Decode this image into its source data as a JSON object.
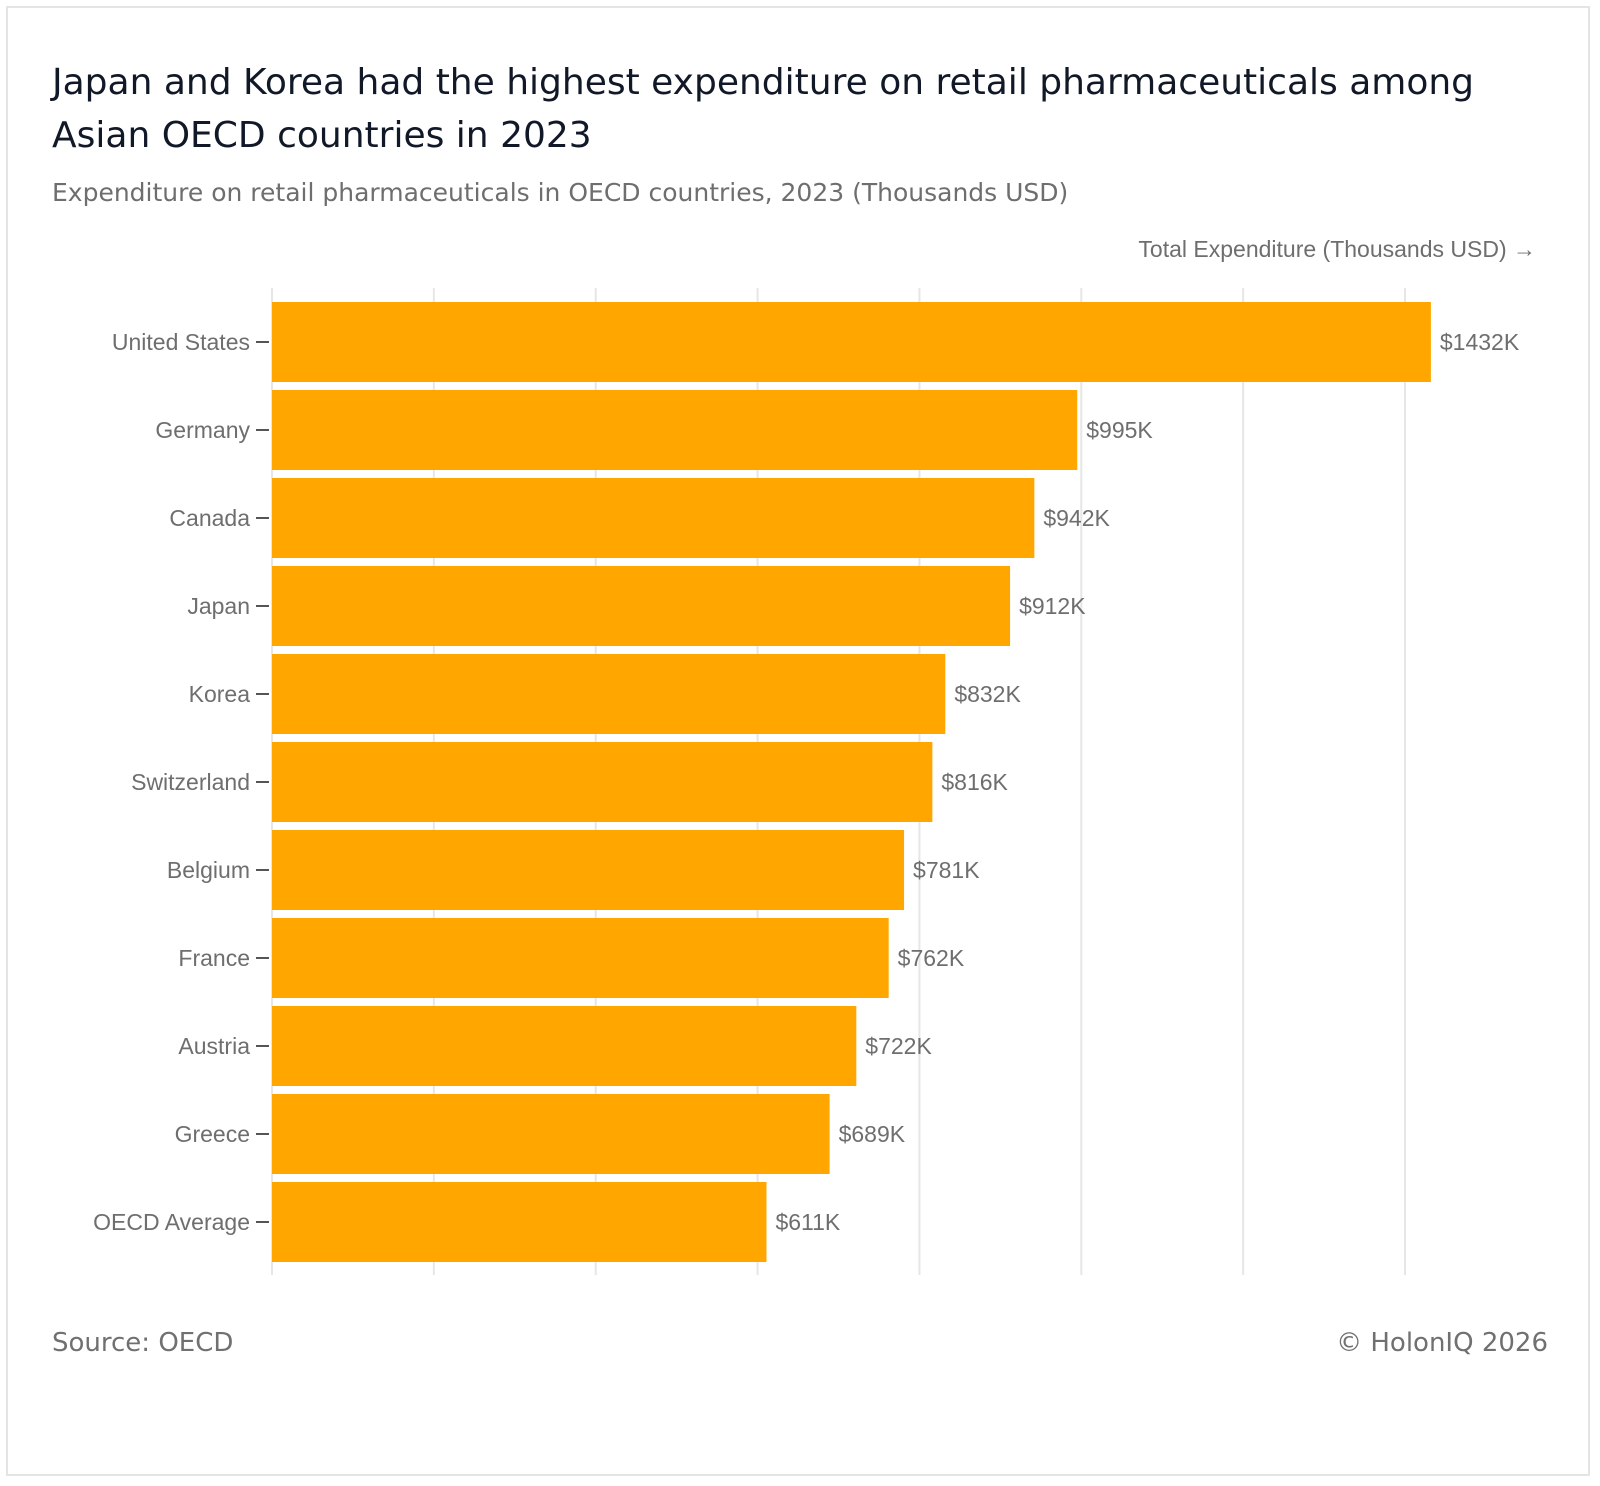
{
  "header": {
    "title": "Japan and Korea had the highest expenditure on retail pharmaceuticals among Asian OECD countries in 2023",
    "subtitle": "Expenditure on retail pharmaceuticals in OECD countries, 2023 (Thousands USD)"
  },
  "footer": {
    "source": "Source: OECD",
    "copyright": "© HolonIQ 2026"
  },
  "colors": {
    "bar": "#ffa600",
    "grid": "#e6e6e6",
    "label": "#6e6e6e",
    "axis": "#555555"
  },
  "chart_data": {
    "type": "bar",
    "orientation": "horizontal",
    "title": "Japan and Korea had the highest expenditure on retail pharmaceuticals among Asian OECD countries in 2023",
    "subtitle": "Expenditure on retail pharmaceuticals in OECD countries, 2023 (Thousands USD)",
    "xlabel": "Total Expenditure (Thousands USD) →",
    "ylabel": "",
    "categories": [
      "United States",
      "Germany",
      "Canada",
      "Japan",
      "Korea",
      "Switzerland",
      "Belgium",
      "France",
      "Austria",
      "Greece",
      "OECD Average"
    ],
    "values": [
      1432,
      995,
      942,
      912,
      832,
      816,
      781,
      762,
      722,
      689,
      611
    ],
    "data_labels": [
      "$1432K",
      "$995K",
      "$942K",
      "$912K",
      "$832K",
      "$816K",
      "$781K",
      "$762K",
      "$722K",
      "$689K",
      "$611K"
    ],
    "xlim": [
      0,
      1600
    ],
    "grid_step": 200,
    "grid": true,
    "legend": "none"
  }
}
